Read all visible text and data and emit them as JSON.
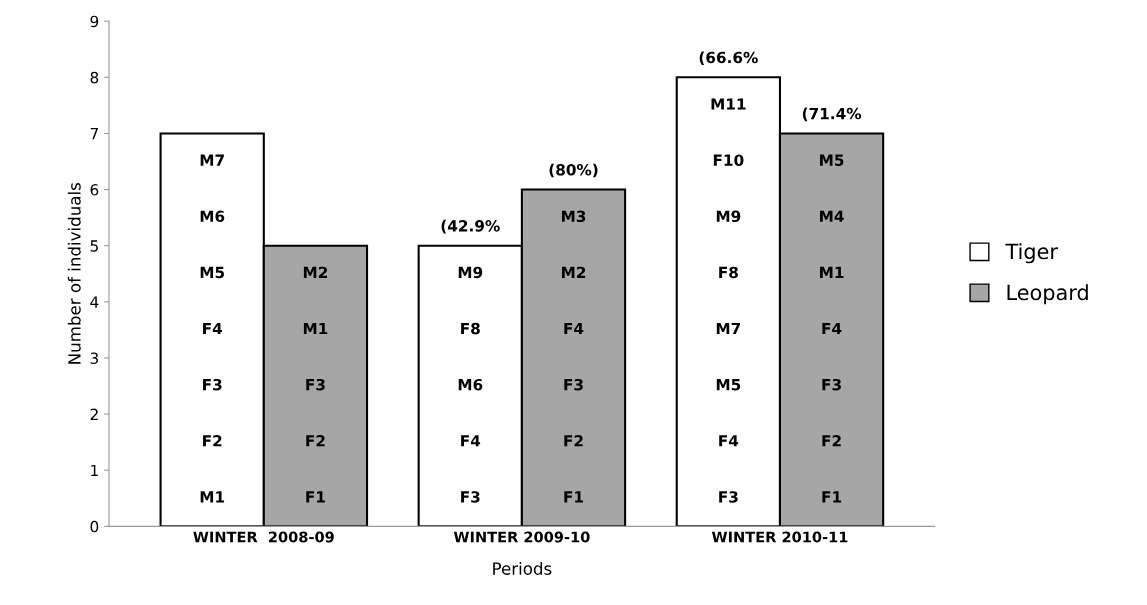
{
  "chart_data": {
    "type": "bar",
    "xlabel": "Periods",
    "ylabel": "Number of individuals",
    "categories": [
      "WINTER  2008-09",
      "WINTER 2009-10",
      "WINTER 2010-11"
    ],
    "series": [
      {
        "name": "Tiger",
        "color": "#ffffff",
        "values": [
          7,
          5,
          8
        ]
      },
      {
        "name": "Leopard",
        "color": "#a6a6a6",
        "values": [
          5,
          6,
          7
        ]
      }
    ],
    "ylim": [
      0,
      9
    ],
    "yticks": [
      0,
      1,
      2,
      3,
      4,
      5,
      6,
      7,
      8,
      9
    ],
    "grid": false,
    "legend": "right",
    "annotations": [
      "M1",
      "F2",
      "F3",
      "F4",
      "M5",
      "M6",
      "M7",
      "F1",
      "F2",
      "F3",
      "M1",
      "M2",
      "F3",
      "F4",
      "M6",
      "F8",
      "M9",
      "F1",
      "F2",
      "F3",
      "F4",
      "M2",
      "M3",
      "F3",
      "F4",
      "M5",
      "M7",
      "F8",
      "M9",
      "F10",
      "M11",
      "F1",
      "F2",
      "F3",
      "F4",
      "M1",
      "M4",
      "M5",
      "(42.9%",
      "(80%)",
      "(66.6%",
      "(71.4%"
    ]
  }
}
